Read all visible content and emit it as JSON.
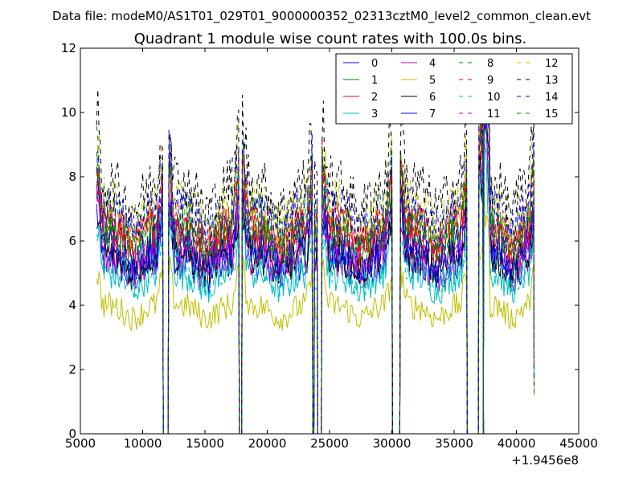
{
  "page": {
    "suptitle": "Data file: modeM0/AS1T01_029T01_9000000352_02313cztM0_level2_common_clean.evt"
  },
  "chart_data": {
    "type": "line",
    "title": "Quadrant 1 module wise count rates with 100.0s bins.",
    "xlabel": "",
    "ylabel": "",
    "x_offset_label": "+1.9456e8",
    "xlim": [
      5000,
      45000
    ],
    "ylim": [
      0,
      12
    ],
    "xticks": [
      5000,
      10000,
      15000,
      20000,
      25000,
      30000,
      35000,
      40000,
      45000
    ],
    "yticks": [
      0,
      2,
      4,
      6,
      8,
      10,
      12
    ],
    "legend_position": "top-right",
    "legend_columns": 4,
    "segments": [
      {
        "start": 6300,
        "end": 11600
      },
      {
        "start": 12100,
        "end": 17700
      },
      {
        "start": 18000,
        "end": 23600
      },
      {
        "start": 23800,
        "end": 24000
      },
      {
        "start": 24400,
        "end": 30000
      },
      {
        "start": 30700,
        "end": 36000
      },
      {
        "start": 37000,
        "end": 37300
      },
      {
        "start": 37400,
        "end": 41400
      }
    ],
    "series": [
      {
        "name": "0",
        "color": "#0000ff",
        "dash": "solid",
        "level": 5.4
      },
      {
        "name": "1",
        "color": "#008000",
        "dash": "solid",
        "level": 6.2
      },
      {
        "name": "2",
        "color": "#ff0000",
        "dash": "solid",
        "level": 6.5
      },
      {
        "name": "3",
        "color": "#00bfbf",
        "dash": "solid",
        "level": 5.0
      },
      {
        "name": "4",
        "color": "#bf00bf",
        "dash": "solid",
        "level": 5.5
      },
      {
        "name": "5",
        "color": "#bfbf00",
        "dash": "solid",
        "level": 4.0
      },
      {
        "name": "6",
        "color": "#000000",
        "dash": "solid",
        "level": 5.6
      },
      {
        "name": "7",
        "color": "#0000ff",
        "dash": "solid",
        "level": 5.8
      },
      {
        "name": "8",
        "color": "#008000",
        "dash": "dashed",
        "level": 6.8
      },
      {
        "name": "9",
        "color": "#ff0000",
        "dash": "dashed",
        "level": 6.6
      },
      {
        "name": "10",
        "color": "#00bfbf",
        "dash": "dashed",
        "level": 5.2
      },
      {
        "name": "11",
        "color": "#bf00bf",
        "dash": "dashed",
        "level": 6.0
      },
      {
        "name": "12",
        "color": "#bfbf00",
        "dash": "dashed",
        "level": 7.2
      },
      {
        "name": "13",
        "color": "#000000",
        "dash": "dashed",
        "level": 7.8
      },
      {
        "name": "14",
        "color": "#0000ff",
        "dash": "dashed",
        "level": 7.0
      },
      {
        "name": "15",
        "color": "#008000",
        "dash": "dashed",
        "level": 6.4
      }
    ]
  }
}
